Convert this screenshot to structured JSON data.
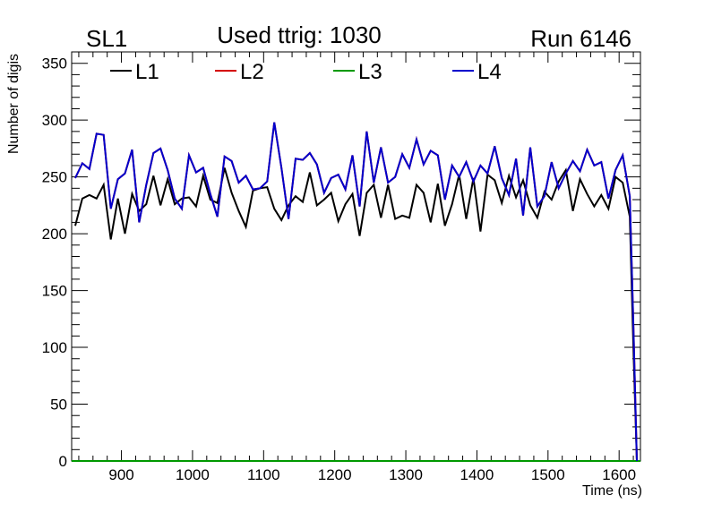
{
  "chart_data": {
    "type": "line",
    "title_left": "SL1",
    "title_center": "Used ttrig: 1030",
    "title_right": "Run 6146",
    "xlabel": "Time (ns)",
    "ylabel": "Number of digis",
    "xlim": [
      830,
      1630
    ],
    "ylim": [
      0,
      360
    ],
    "x_ticks": [
      900,
      1000,
      1100,
      1200,
      1300,
      1400,
      1500,
      1600
    ],
    "y_ticks": [
      0,
      50,
      100,
      150,
      200,
      250,
      300,
      350
    ],
    "x_tick_labels": [
      "900",
      "1000",
      "1100",
      "1200",
      "1300",
      "1400",
      "1500",
      "1600"
    ],
    "y_tick_labels": [
      "0",
      "50",
      "100",
      "150",
      "200",
      "250",
      "300",
      "350"
    ],
    "legend": [
      {
        "name": "L1",
        "color": "#000000"
      },
      {
        "name": "L2",
        "color": "#d40000"
      },
      {
        "name": "L3",
        "color": "#009900"
      },
      {
        "name": "L4",
        "color": "#0000cc"
      }
    ],
    "series": [
      {
        "name": "L1",
        "color": "#000000",
        "x": [
          835,
          845,
          855,
          865,
          875,
          885,
          895,
          905,
          915,
          925,
          935,
          945,
          955,
          965,
          975,
          985,
          995,
          1005,
          1015,
          1025,
          1035,
          1045,
          1055,
          1065,
          1075,
          1085,
          1095,
          1105,
          1115,
          1125,
          1135,
          1145,
          1155,
          1165,
          1175,
          1185,
          1195,
          1205,
          1215,
          1225,
          1235,
          1245,
          1255,
          1265,
          1275,
          1285,
          1295,
          1305,
          1315,
          1325,
          1335,
          1345,
          1355,
          1365,
          1375,
          1385,
          1395,
          1405,
          1415,
          1425,
          1435,
          1445,
          1455,
          1465,
          1475,
          1485,
          1495,
          1505,
          1515,
          1525,
          1535,
          1545,
          1555,
          1565,
          1575,
          1585,
          1595,
          1605,
          1615,
          1620,
          1625
        ],
        "values": [
          207,
          231,
          234,
          231,
          243,
          195,
          231,
          200,
          235,
          220,
          226,
          251,
          225,
          248,
          226,
          231,
          232,
          224,
          251,
          230,
          227,
          258,
          236,
          220,
          206,
          238,
          240,
          241,
          222,
          212,
          225,
          233,
          228,
          254,
          225,
          230,
          236,
          211,
          226,
          235,
          198,
          236,
          243,
          214,
          243,
          213,
          216,
          214,
          243,
          236,
          210,
          244,
          207,
          226,
          252,
          213,
          249,
          202,
          252,
          247,
          227,
          251,
          232,
          247,
          225,
          214,
          237,
          230,
          246,
          256,
          220,
          248,
          235,
          224,
          234,
          222,
          250,
          245,
          215,
          100,
          0
        ]
      },
      {
        "name": "L2",
        "color": "#d40000",
        "x": [
          835,
          845,
          855,
          865,
          875,
          885,
          895,
          905,
          915,
          925,
          935,
          945,
          955,
          965,
          975,
          985,
          995,
          1005,
          1015,
          1025,
          1035,
          1045,
          1055,
          1065,
          1075,
          1085,
          1095,
          1105,
          1115,
          1125,
          1135,
          1145,
          1155,
          1165,
          1175,
          1185,
          1195,
          1205,
          1215,
          1225,
          1235,
          1245,
          1255,
          1265,
          1275,
          1285,
          1295,
          1305,
          1315,
          1325,
          1335,
          1345,
          1355,
          1365,
          1375,
          1385,
          1395,
          1405,
          1415,
          1425,
          1435,
          1445,
          1455,
          1465,
          1475,
          1485,
          1495,
          1505,
          1515,
          1525,
          1535,
          1545,
          1555,
          1565,
          1575,
          1585,
          1595,
          1605,
          1615,
          1620,
          1625
        ],
        "values": [
          249,
          262,
          257,
          288,
          287,
          222,
          248,
          253,
          274,
          210,
          243,
          271,
          275,
          256,
          231,
          222,
          269,
          254,
          258,
          235,
          215,
          268,
          264,
          245,
          251,
          239,
          240,
          246,
          298,
          258,
          213,
          266,
          265,
          271,
          261,
          236,
          249,
          252,
          239,
          269,
          224,
          290,
          245,
          276,
          245,
          250,
          270,
          258,
          283,
          261,
          273,
          269,
          230,
          260,
          250,
          263,
          246,
          260,
          253,
          277,
          249,
          234,
          266,
          216,
          276,
          224,
          233,
          263,
          240,
          253,
          264,
          255,
          274,
          260,
          263,
          231,
          256,
          269,
          233,
          120,
          0
        ]
      },
      {
        "name": "L3",
        "color": "#009900",
        "x": [
          830,
          1630
        ],
        "values": [
          0,
          0
        ]
      },
      {
        "name": "L4",
        "color": "#0000cc",
        "x": [
          835,
          845,
          855,
          865,
          875,
          885,
          895,
          905,
          915,
          925,
          935,
          945,
          955,
          965,
          975,
          985,
          995,
          1005,
          1015,
          1025,
          1035,
          1045,
          1055,
          1065,
          1075,
          1085,
          1095,
          1105,
          1115,
          1125,
          1135,
          1145,
          1155,
          1165,
          1175,
          1185,
          1195,
          1205,
          1215,
          1225,
          1235,
          1245,
          1255,
          1265,
          1275,
          1285,
          1295,
          1305,
          1315,
          1325,
          1335,
          1345,
          1355,
          1365,
          1375,
          1385,
          1395,
          1405,
          1415,
          1425,
          1435,
          1445,
          1455,
          1465,
          1475,
          1485,
          1495,
          1505,
          1515,
          1525,
          1535,
          1545,
          1555,
          1565,
          1575,
          1585,
          1595,
          1605,
          1615,
          1620,
          1625
        ],
        "values": [
          249,
          262,
          257,
          288,
          287,
          222,
          248,
          253,
          274,
          210,
          243,
          271,
          275,
          256,
          231,
          222,
          269,
          254,
          258,
          235,
          215,
          268,
          264,
          245,
          251,
          239,
          240,
          246,
          298,
          258,
          213,
          266,
          265,
          271,
          261,
          236,
          249,
          252,
          239,
          269,
          224,
          290,
          245,
          276,
          245,
          250,
          270,
          258,
          283,
          261,
          273,
          269,
          230,
          260,
          250,
          263,
          246,
          260,
          253,
          277,
          249,
          234,
          266,
          216,
          276,
          224,
          233,
          263,
          240,
          253,
          264,
          255,
          274,
          260,
          263,
          231,
          256,
          269,
          233,
          120,
          0
        ]
      }
    ]
  }
}
